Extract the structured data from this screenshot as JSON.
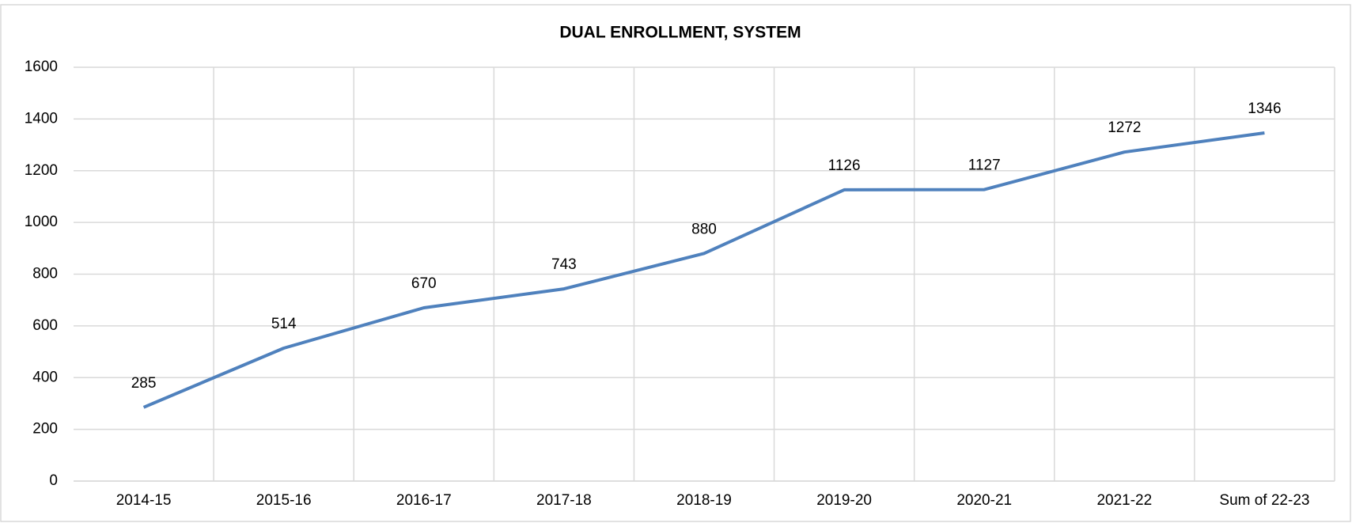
{
  "chart_data": {
    "type": "line",
    "title": "DUAL ENROLLMENT, SYSTEM",
    "categories": [
      "2014-15",
      "2015-16",
      "2016-17",
      "2017-18",
      "2018-19",
      "2019-20",
      "2020-21",
      "2021-22",
      "Sum of 22-23"
    ],
    "values": [
      285,
      514,
      670,
      743,
      880,
      1126,
      1127,
      1272,
      1346
    ],
    "color": "#4f81bd",
    "ylim": [
      0,
      1600
    ],
    "yticks": [
      0,
      200,
      400,
      600,
      800,
      1000,
      1200,
      1400,
      1600
    ],
    "grid": true
  }
}
